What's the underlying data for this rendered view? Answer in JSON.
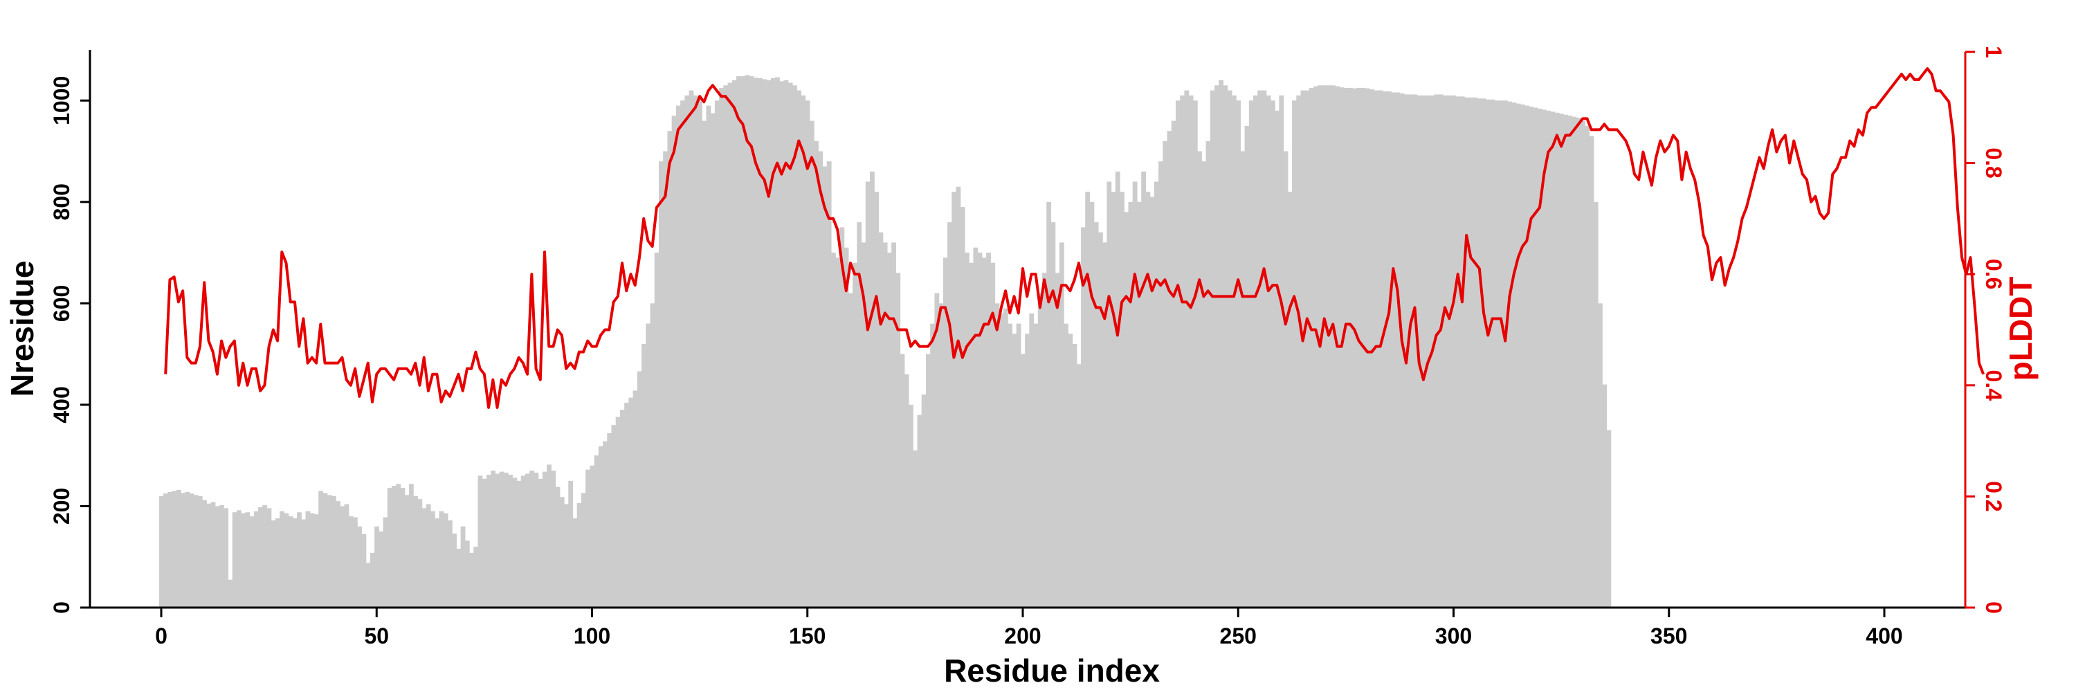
{
  "chart_data": {
    "type": "bar+line",
    "title": "",
    "xlabel": "Residue index",
    "ylabel_left": "Nresidue",
    "ylabel_right": "pLDDT",
    "xlim": [
      -16,
      430
    ],
    "ylim_left": [
      0,
      1100
    ],
    "ylim_right": [
      0,
      1
    ],
    "x_ticks": [
      0,
      50,
      100,
      150,
      200,
      250,
      300,
      350,
      400
    ],
    "y_left_ticks": [
      0,
      200,
      400,
      600,
      800,
      1000
    ],
    "y_right_ticks": [
      0,
      0.2,
      0.4,
      0.6,
      0.8,
      1
    ],
    "y_right_tick_labels": [
      "0",
      "0.2",
      "0.4",
      "0.6",
      "0.8",
      "1"
    ],
    "grid": false,
    "legend": "none",
    "colors": {
      "bars": "#cccccc",
      "line": "#e60000",
      "right_axis": "#e60000",
      "axes": "#000000"
    },
    "series": [
      {
        "kind": "bar",
        "axis": "left",
        "x_start": 0,
        "x_step": 1,
        "values": [
          220,
          225,
          228,
          230,
          232,
          226,
          228,
          225,
          222,
          220,
          212,
          205,
          208,
          200,
          202,
          196,
          55,
          188,
          192,
          186,
          188,
          180,
          190,
          198,
          202,
          196,
          172,
          176,
          190,
          186,
          180,
          176,
          188,
          174,
          190,
          186,
          184,
          230,
          226,
          222,
          220,
          210,
          200,
          204,
          180,
          178,
          160,
          145,
          88,
          108,
          160,
          150,
          178,
          236,
          240,
          244,
          236,
          222,
          244,
          220,
          214,
          196,
          204,
          190,
          176,
          190,
          186,
          172,
          146,
          116,
          160,
          132,
          108,
          120,
          260,
          254,
          262,
          270,
          264,
          268,
          266,
          262,
          256,
          250,
          260,
          264,
          270,
          266,
          254,
          268,
          282,
          270,
          238,
          218,
          204,
          250,
          176,
          206,
          226,
          272,
          280,
          300,
          318,
          328,
          344,
          360,
          376,
          390,
          404,
          414,
          428,
          466,
          520,
          560,
          600,
          700,
          880,
          900,
          940,
          970,
          990,
          1000,
          1010,
          1020,
          1010,
          1000,
          960,
          990,
          975,
          1000,
          1025,
          1030,
          1035,
          1040,
          1048,
          1048,
          1050,
          1048,
          1045,
          1044,
          1042,
          1040,
          1044,
          1046,
          1038,
          1040,
          1035,
          1030,
          1020,
          1010,
          1000,
          960,
          920,
          900,
          870,
          880,
          700,
          690,
          750,
          710,
          620,
          680,
          760,
          720,
          840,
          860,
          820,
          740,
          720,
          700,
          720,
          660,
          500,
          460,
          400,
          310,
          380,
          420,
          500,
          560,
          620,
          600,
          690,
          760,
          820,
          830,
          790,
          700,
          680,
          710,
          700,
          690,
          700,
          680,
          600,
          580,
          590,
          560,
          540,
          560,
          500,
          540,
          580,
          560,
          620,
          660,
          800,
          760,
          660,
          720,
          560,
          540,
          520,
          480,
          750,
          820,
          800,
          760,
          740,
          720,
          840,
          820,
          860,
          820,
          780,
          800,
          840,
          800,
          860,
          820,
          810,
          840,
          880,
          920,
          940,
          960,
          1000,
          1010,
          1020,
          1010,
          1000,
          900,
          880,
          920,
          1020,
          1030,
          1040,
          1030,
          1020,
          1010,
          1000,
          900,
          950,
          1000,
          1010,
          1020,
          1020,
          1010,
          1000,
          980,
          1010,
          900,
          820,
          1000,
          1010,
          1020,
          1020,
          1025,
          1028,
          1030,
          1030,
          1030,
          1030,
          1028,
          1026,
          1025,
          1025,
          1024,
          1025,
          1025,
          1024,
          1022,
          1020,
          1020,
          1018,
          1018,
          1016,
          1016,
          1014,
          1012,
          1012,
          1012,
          1010,
          1010,
          1010,
          1010,
          1012,
          1012,
          1010,
          1010,
          1010,
          1008,
          1008,
          1006,
          1006,
          1006,
          1004,
          1004,
          1002,
          1002,
          1000,
          1000,
          1000,
          998,
          996,
          994,
          992,
          990,
          988,
          986,
          984,
          982,
          980,
          978,
          976,
          974,
          972,
          970,
          968,
          966,
          960,
          950,
          930,
          800,
          600,
          440,
          350
        ]
      },
      {
        "kind": "line",
        "axis": "right",
        "name": "pLDDT",
        "x_start": 1,
        "x_step": 1,
        "values": [
          0.42,
          0.59,
          0.595,
          0.55,
          0.57,
          0.45,
          0.44,
          0.44,
          0.47,
          0.585,
          0.48,
          0.46,
          0.42,
          0.48,
          0.45,
          0.47,
          0.48,
          0.4,
          0.44,
          0.4,
          0.43,
          0.43,
          0.39,
          0.4,
          0.47,
          0.5,
          0.48,
          0.64,
          0.62,
          0.55,
          0.55,
          0.47,
          0.52,
          0.44,
          0.45,
          0.44,
          0.51,
          0.44,
          0.44,
          0.44,
          0.44,
          0.45,
          0.41,
          0.4,
          0.43,
          0.38,
          0.41,
          0.44,
          0.37,
          0.42,
          0.43,
          0.43,
          0.42,
          0.41,
          0.43,
          0.43,
          0.43,
          0.42,
          0.44,
          0.4,
          0.45,
          0.39,
          0.42,
          0.42,
          0.37,
          0.39,
          0.38,
          0.4,
          0.42,
          0.39,
          0.43,
          0.43,
          0.46,
          0.43,
          0.42,
          0.36,
          0.41,
          0.36,
          0.41,
          0.4,
          0.42,
          0.43,
          0.45,
          0.44,
          0.42,
          0.6,
          0.43,
          0.41,
          0.64,
          0.47,
          0.47,
          0.5,
          0.49,
          0.43,
          0.44,
          0.43,
          0.46,
          0.46,
          0.48,
          0.47,
          0.47,
          0.49,
          0.5,
          0.5,
          0.55,
          0.56,
          0.62,
          0.57,
          0.6,
          0.58,
          0.63,
          0.7,
          0.66,
          0.65,
          0.72,
          0.73,
          0.74,
          0.8,
          0.82,
          0.86,
          0.87,
          0.88,
          0.89,
          0.9,
          0.92,
          0.91,
          0.93,
          0.94,
          0.93,
          0.92,
          0.92,
          0.91,
          0.9,
          0.88,
          0.87,
          0.84,
          0.83,
          0.8,
          0.78,
          0.77,
          0.74,
          0.78,
          0.8,
          0.78,
          0.8,
          0.79,
          0.81,
          0.84,
          0.82,
          0.79,
          0.81,
          0.79,
          0.75,
          0.72,
          0.7,
          0.7,
          0.68,
          0.62,
          0.57,
          0.62,
          0.6,
          0.6,
          0.56,
          0.5,
          0.53,
          0.56,
          0.51,
          0.53,
          0.52,
          0.52,
          0.5,
          0.5,
          0.5,
          0.47,
          0.48,
          0.47,
          0.47,
          0.47,
          0.48,
          0.5,
          0.54,
          0.54,
          0.51,
          0.45,
          0.48,
          0.45,
          0.47,
          0.48,
          0.49,
          0.49,
          0.51,
          0.51,
          0.53,
          0.5,
          0.54,
          0.57,
          0.53,
          0.56,
          0.53,
          0.61,
          0.56,
          0.6,
          0.6,
          0.54,
          0.59,
          0.55,
          0.57,
          0.54,
          0.58,
          0.58,
          0.57,
          0.59,
          0.62,
          0.58,
          0.6,
          0.56,
          0.54,
          0.54,
          0.52,
          0.56,
          0.53,
          0.49,
          0.55,
          0.56,
          0.55,
          0.6,
          0.56,
          0.58,
          0.6,
          0.57,
          0.59,
          0.58,
          0.59,
          0.57,
          0.56,
          0.58,
          0.55,
          0.55,
          0.54,
          0.56,
          0.59,
          0.56,
          0.57,
          0.56,
          0.56,
          0.56,
          0.56,
          0.56,
          0.56,
          0.59,
          0.56,
          0.56,
          0.56,
          0.56,
          0.58,
          0.61,
          0.57,
          0.58,
          0.58,
          0.55,
          0.51,
          0.54,
          0.56,
          0.53,
          0.48,
          0.52,
          0.5,
          0.5,
          0.47,
          0.52,
          0.49,
          0.51,
          0.47,
          0.47,
          0.51,
          0.51,
          0.5,
          0.48,
          0.47,
          0.46,
          0.46,
          0.47,
          0.47,
          0.5,
          0.53,
          0.61,
          0.57,
          0.48,
          0.44,
          0.51,
          0.54,
          0.44,
          0.41,
          0.44,
          0.46,
          0.49,
          0.5,
          0.54,
          0.52,
          0.55,
          0.6,
          0.55,
          0.67,
          0.63,
          0.62,
          0.61,
          0.53,
          0.49,
          0.52,
          0.52,
          0.52,
          0.48,
          0.56,
          0.6,
          0.63,
          0.65,
          0.66,
          0.7,
          0.71,
          0.72,
          0.78,
          0.82,
          0.83,
          0.85,
          0.83,
          0.85,
          0.85,
          0.86,
          0.87,
          0.88,
          0.88,
          0.86,
          0.86,
          0.86,
          0.87,
          0.86,
          0.86,
          0.86,
          0.85,
          0.84,
          0.82,
          0.78,
          0.77,
          0.82,
          0.79,
          0.76,
          0.81,
          0.84,
          0.82,
          0.83,
          0.85,
          0.84,
          0.77,
          0.82,
          0.79,
          0.77,
          0.73,
          0.67,
          0.65,
          0.59,
          0.62,
          0.63,
          0.58,
          0.61,
          0.63,
          0.66,
          0.7,
          0.72,
          0.75,
          0.78,
          0.81,
          0.79,
          0.83,
          0.86,
          0.82,
          0.84,
          0.85,
          0.8,
          0.84,
          0.81,
          0.78,
          0.77,
          0.73,
          0.74,
          0.71,
          0.7,
          0.71,
          0.78,
          0.79,
          0.81,
          0.81,
          0.84,
          0.83,
          0.86,
          0.85,
          0.89,
          0.9,
          0.9,
          0.91,
          0.92,
          0.93,
          0.94,
          0.95,
          0.96,
          0.95,
          0.96,
          0.95,
          0.95,
          0.96,
          0.97,
          0.96,
          0.93,
          0.93,
          0.92,
          0.91,
          0.85,
          0.72,
          0.63,
          0.6,
          0.63,
          0.54,
          0.44,
          0.42
        ]
      }
    ]
  }
}
